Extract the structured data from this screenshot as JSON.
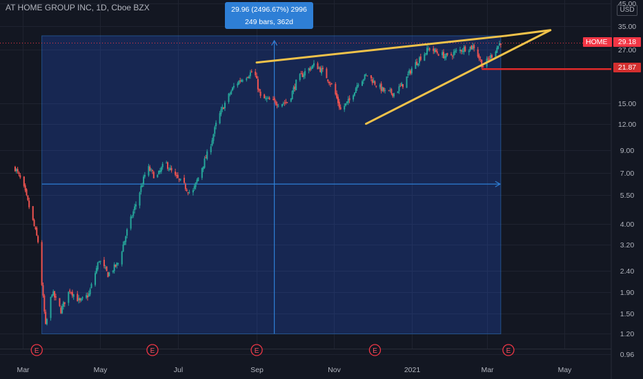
{
  "window": {
    "title": "AT HOME GROUP INC, 1D, Cboe BZX",
    "currency": "USD"
  },
  "measure": {
    "line1": "29.96 (2496.67%) 2996",
    "line2": "249 bars, 362d"
  },
  "last_price": {
    "symbol": "HOME",
    "value": "29.18",
    "color": "#f23645"
  },
  "level": {
    "value": "21.87",
    "color": "#e02a2a"
  },
  "earnings_marker": "E",
  "chart_data": {
    "type": "candlestick",
    "title": "AT HOME GROUP INC, 1D, Cboe BZX",
    "y_scale": "log",
    "y_ticks": [
      0.96,
      1.2,
      1.5,
      1.9,
      2.4,
      3.2,
      4.0,
      5.5,
      7.0,
      9.0,
      12.0,
      15.0,
      27.0,
      35.0,
      45.0
    ],
    "y_tick_labels": [
      "0.96",
      "1.20",
      "1.50",
      "1.90",
      "2.40",
      "3.20",
      "4.00",
      "5.50",
      "7.00",
      "9.00",
      "12.00",
      "15.00",
      "27.00",
      "35.00",
      "45.00"
    ],
    "x_ticks": [
      "Mar",
      "May",
      "Jul",
      "Sep",
      "Nov",
      "2021",
      "Mar",
      "May"
    ],
    "x_tick_dates": [
      "2020-03-01",
      "2020-05-01",
      "2020-07-01",
      "2020-09-01",
      "2020-11-01",
      "2021-01-01",
      "2021-03-01",
      "2021-05-01"
    ],
    "x_range": [
      "2020-02-23",
      "2021-05-12"
    ],
    "price_path": [
      [
        "2020-02-24",
        7.4
      ],
      [
        "2020-03-01",
        6.2
      ],
      [
        "2020-03-07",
        4.6
      ],
      [
        "2020-03-13",
        3.3
      ],
      [
        "2020-03-19",
        1.3
      ],
      [
        "2020-03-24",
        1.9
      ],
      [
        "2020-03-31",
        1.55
      ],
      [
        "2020-04-07",
        1.95
      ],
      [
        "2020-04-15",
        1.7
      ],
      [
        "2020-04-22",
        1.85
      ],
      [
        "2020-04-30",
        2.7
      ],
      [
        "2020-05-07",
        2.3
      ],
      [
        "2020-05-15",
        2.6
      ],
      [
        "2020-05-22",
        3.7
      ],
      [
        "2020-05-30",
        5.2
      ],
      [
        "2020-06-07",
        7.5
      ],
      [
        "2020-06-14",
        6.6
      ],
      [
        "2020-06-21",
        7.9
      ],
      [
        "2020-06-28",
        6.8
      ],
      [
        "2020-07-05",
        6.2
      ],
      [
        "2020-07-12",
        5.5
      ],
      [
        "2020-07-19",
        7.2
      ],
      [
        "2020-07-26",
        9.2
      ],
      [
        "2020-08-01",
        12.5
      ],
      [
        "2020-08-08",
        15.5
      ],
      [
        "2020-08-15",
        18.5
      ],
      [
        "2020-08-22",
        20.0
      ],
      [
        "2020-08-30",
        21.5
      ],
      [
        "2020-09-04",
        16.0
      ],
      [
        "2020-09-11",
        15.5
      ],
      [
        "2020-09-19",
        15.0
      ],
      [
        "2020-09-26",
        15.3
      ],
      [
        "2020-10-03",
        19.5
      ],
      [
        "2020-10-10",
        21.5
      ],
      [
        "2020-10-17",
        23.0
      ],
      [
        "2020-10-24",
        21.0
      ],
      [
        "2020-10-31",
        18.0
      ],
      [
        "2020-11-06",
        14.0
      ],
      [
        "2020-11-13",
        15.5
      ],
      [
        "2020-11-20",
        19.0
      ],
      [
        "2020-11-27",
        20.5
      ],
      [
        "2020-12-04",
        18.5
      ],
      [
        "2020-12-11",
        17.0
      ],
      [
        "2020-12-18",
        16.8
      ],
      [
        "2020-12-25",
        18.5
      ],
      [
        "2021-01-01",
        22.0
      ],
      [
        "2021-01-08",
        25.0
      ],
      [
        "2021-01-15",
        27.5
      ],
      [
        "2021-01-22",
        26.0
      ],
      [
        "2021-01-29",
        25.0
      ],
      [
        "2021-02-05",
        26.5
      ],
      [
        "2021-02-12",
        27.5
      ],
      [
        "2021-02-19",
        28.0
      ],
      [
        "2021-02-26",
        22.5
      ],
      [
        "2021-03-05",
        25.5
      ],
      [
        "2021-03-12",
        29.5
      ]
    ],
    "measure_range": {
      "start": "2020-03-16",
      "end": "2021-03-12",
      "low": 1.2,
      "high": 31.5,
      "mid_price": 6.2,
      "anchor_date": "2020-09-04"
    },
    "trendlines": [
      {
        "from": [
          "2020-09-01",
          23.5
        ],
        "to": [
          "2021-03-16",
          31.5
        ],
        "color": "#f0c24a"
      },
      {
        "from": [
          "2020-11-26",
          12.0
        ],
        "to": [
          "2021-04-20",
          33.5
        ],
        "color": "#f0c24a"
      },
      {
        "from": [
          "2021-03-16",
          31.5
        ],
        "to": [
          "2021-04-20",
          33.5
        ],
        "color": "#f0c24a"
      }
    ],
    "support_level": {
      "value": 21.87,
      "from": "2021-02-25",
      "color": "#e02a2a"
    },
    "last_price_line": {
      "value": 29.18,
      "color": "#f23645"
    },
    "earnings_dates": [
      "2020-03-12",
      "2020-06-11",
      "2020-09-01",
      "2020-12-03",
      "2021-03-18"
    ],
    "colors": {
      "up": "#26a69a",
      "down": "#ef5350",
      "measure_fill": "#2962ff",
      "measure_line": "#2e7fd6",
      "background": "#131722"
    }
  }
}
